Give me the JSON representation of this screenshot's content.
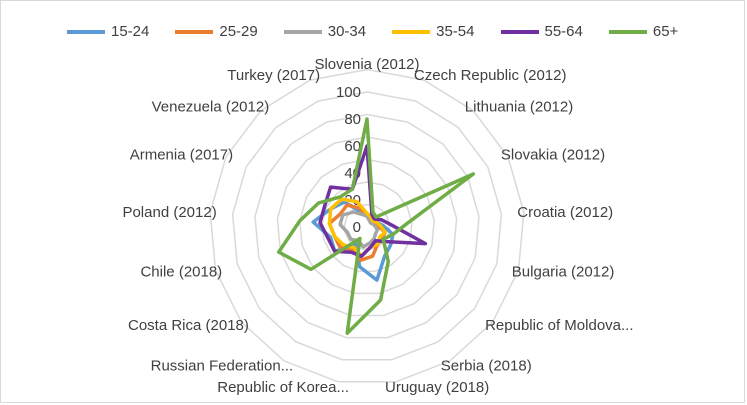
{
  "chart_data": {
    "type": "radar",
    "title": "",
    "categories": [
      "Slovenia (2012)",
      "Czech Republic (2012)",
      "Lithuania (2012)",
      "Slovakia (2012)",
      "Croatia (2012)",
      "Bulgaria (2012)",
      "Republic of Moldova...",
      "Serbia (2018)",
      "Uruguay (2018)",
      "Republic of Korea...",
      "Russian Federation...",
      "Costa Rica (2018)",
      "Chile (2018)",
      "Poland (2012)",
      "Armenia (2017)",
      "Venezuela (2012)",
      "Turkey (2017)"
    ],
    "radial_ticks": [
      "0",
      "20",
      "40",
      "60",
      "80",
      "100"
    ],
    "rmax": 100,
    "legend_position": "top",
    "series": [
      {
        "name": "15-24",
        "color": "#5b9bd5",
        "values": [
          10,
          8,
          6,
          8,
          12,
          20,
          22,
          25,
          40,
          30,
          15,
          30,
          28,
          40,
          30,
          25,
          12
        ]
      },
      {
        "name": "25-29",
        "color": "#ed7d31",
        "values": [
          8,
          6,
          5,
          6,
          8,
          14,
          14,
          15,
          22,
          25,
          20,
          25,
          25,
          28,
          22,
          22,
          15
        ]
      },
      {
        "name": "30-34",
        "color": "#a5a5a5",
        "values": [
          8,
          5,
          4,
          5,
          6,
          8,
          8,
          10,
          12,
          15,
          12,
          15,
          15,
          20,
          20,
          15,
          10
        ]
      },
      {
        "name": "35-54",
        "color": "#ffc000",
        "values": [
          10,
          8,
          6,
          8,
          10,
          14,
          12,
          15,
          15,
          22,
          18,
          22,
          25,
          28,
          30,
          28,
          20
        ]
      },
      {
        "name": "55-64",
        "color": "#7030a0",
        "values": [
          60,
          10,
          8,
          12,
          18,
          45,
          18,
          12,
          15,
          22,
          22,
          30,
          30,
          35,
          35,
          40,
          30
        ]
      },
      {
        "name": "65+",
        "color": "#70ad47",
        "values": [
          80,
          12,
          10,
          88,
          30,
          20,
          15,
          30,
          55,
          80,
          10,
          52,
          68,
          50,
          40,
          30,
          30
        ]
      }
    ]
  }
}
